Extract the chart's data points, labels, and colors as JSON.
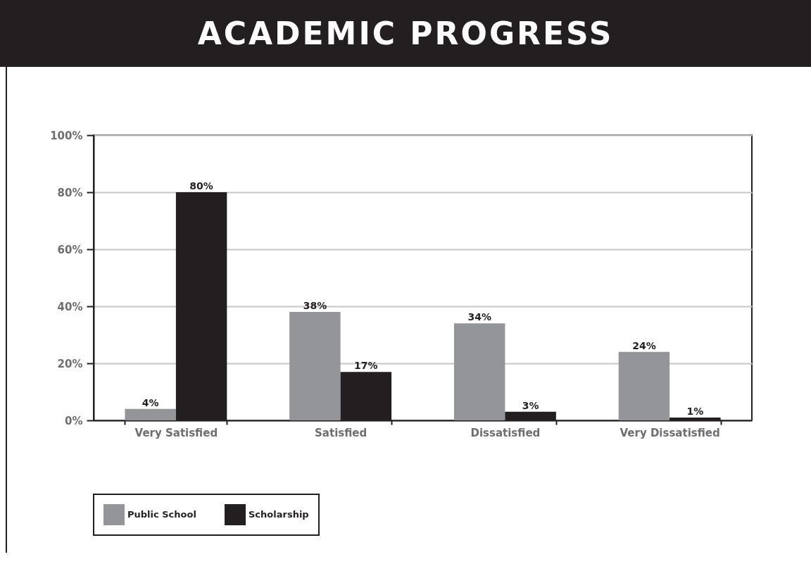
{
  "chart_data": {
    "type": "bar",
    "title": "ACADEMIC PROGRESS",
    "categories": [
      "Very Satisfied",
      "Satisfied",
      "Dissatisfied",
      "Very Dissatisfied"
    ],
    "series": [
      {
        "name": "Public School",
        "color": "#939598",
        "values": [
          4,
          38,
          34,
          24
        ],
        "value_labels": [
          "4%",
          "38%",
          "34%",
          "24%"
        ]
      },
      {
        "name": "Scholarship",
        "color": "#231f20",
        "values": [
          80,
          17,
          3,
          1
        ],
        "value_labels": [
          "80%",
          "17%",
          "3%",
          "1%"
        ]
      }
    ],
    "ylim": [
      0,
      100
    ],
    "yticks": [
      {
        "value": 0,
        "label": "0%"
      },
      {
        "value": 20,
        "label": "20%"
      },
      {
        "value": 40,
        "label": "40%"
      },
      {
        "value": 60,
        "label": "60%"
      },
      {
        "value": 80,
        "label": "80%"
      },
      {
        "value": 100,
        "label": "100%"
      }
    ],
    "grid": "y",
    "legend": "bottom"
  }
}
